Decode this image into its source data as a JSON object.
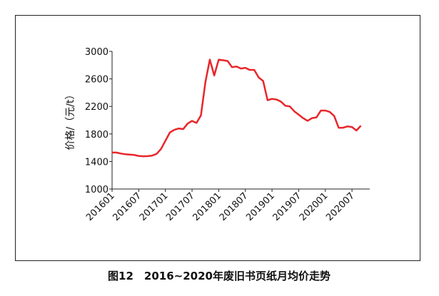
{
  "chart_data": {
    "type": "line",
    "caption": "图12　2016~2020年废旧书页纸月均价走势",
    "y_label": "价格/（元/t）",
    "categories": [
      "201601",
      null,
      null,
      null,
      null,
      null,
      "201607",
      null,
      null,
      null,
      null,
      null,
      "201701",
      null,
      null,
      null,
      null,
      null,
      "201707",
      null,
      null,
      null,
      null,
      null,
      "201801",
      null,
      null,
      null,
      null,
      null,
      "201807",
      null,
      null,
      null,
      null,
      null,
      "201901",
      null,
      null,
      null,
      null,
      null,
      "201907",
      null,
      null,
      null,
      null,
      null,
      "202001",
      null,
      null,
      null,
      null,
      null,
      "202007",
      null,
      null
    ],
    "series": [
      {
        "name": "价格",
        "color": "#e8262b",
        "values": [
          1530,
          1530,
          1515,
          1505,
          1500,
          1495,
          1480,
          1475,
          1478,
          1485,
          1510,
          1580,
          1700,
          1820,
          1860,
          1880,
          1870,
          1950,
          1990,
          1960,
          2070,
          2550,
          2880,
          2650,
          2880,
          2870,
          2860,
          2770,
          2780,
          2750,
          2760,
          2730,
          2730,
          2620,
          2570,
          2290,
          2310,
          2300,
          2270,
          2210,
          2200,
          2130,
          2080,
          2030,
          1990,
          2030,
          2040,
          2140,
          2140,
          2120,
          2060,
          1890,
          1890,
          1910,
          1900,
          1850,
          1920
        ]
      }
    ],
    "ylim": [
      1000,
      3000
    ],
    "yticks": [
      1000,
      1400,
      1800,
      2200,
      2600,
      3000
    ],
    "grid": false
  }
}
